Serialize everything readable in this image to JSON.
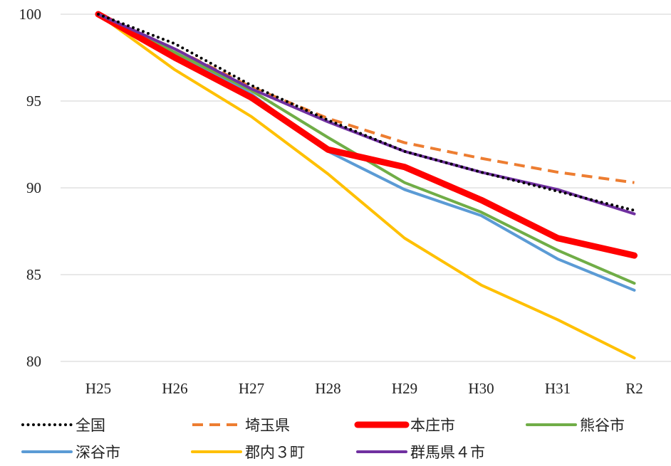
{
  "chart_data": {
    "type": "line",
    "title": "",
    "xlabel": "",
    "ylabel": "",
    "categories": [
      "H25",
      "H26",
      "H27",
      "H28",
      "H29",
      "H30",
      "H31",
      "R2"
    ],
    "ylim": [
      80,
      100
    ],
    "yticks": [
      80,
      85,
      90,
      95,
      100
    ],
    "grid": "horizontal",
    "legend_position": "bottom",
    "series": [
      {
        "name": "全国",
        "color": "#000000",
        "style": "dotted",
        "values": [
          100,
          98.3,
          95.9,
          93.9,
          92.1,
          90.9,
          89.8,
          88.7
        ]
      },
      {
        "name": "埼玉県",
        "color": "#ED7D31",
        "style": "dashed",
        "values": [
          100,
          98.0,
          95.8,
          94.0,
          92.6,
          91.7,
          90.9,
          90.3
        ]
      },
      {
        "name": "本庄市",
        "color": "#FF0000",
        "style": "thick",
        "values": [
          100,
          97.5,
          95.2,
          92.2,
          91.2,
          89.3,
          87.1,
          86.1
        ]
      },
      {
        "name": "熊谷市",
        "color": "#70AD47",
        "style": "solid",
        "values": [
          100,
          97.8,
          95.6,
          92.9,
          90.3,
          88.6,
          86.4,
          84.5
        ]
      },
      {
        "name": "深谷市",
        "color": "#5B9BD5",
        "style": "solid",
        "values": [
          100,
          97.8,
          95.4,
          92.1,
          89.9,
          88.4,
          85.9,
          84.1
        ]
      },
      {
        "name": "郡内３町",
        "color": "#FFC000",
        "style": "solid",
        "values": [
          100,
          96.8,
          94.1,
          90.8,
          87.1,
          84.4,
          82.4,
          80.2
        ]
      },
      {
        "name": "群馬県４市",
        "color": "#7030A0",
        "style": "solid",
        "values": [
          100,
          98.0,
          95.7,
          93.8,
          92.1,
          90.9,
          89.9,
          88.5
        ]
      }
    ]
  }
}
